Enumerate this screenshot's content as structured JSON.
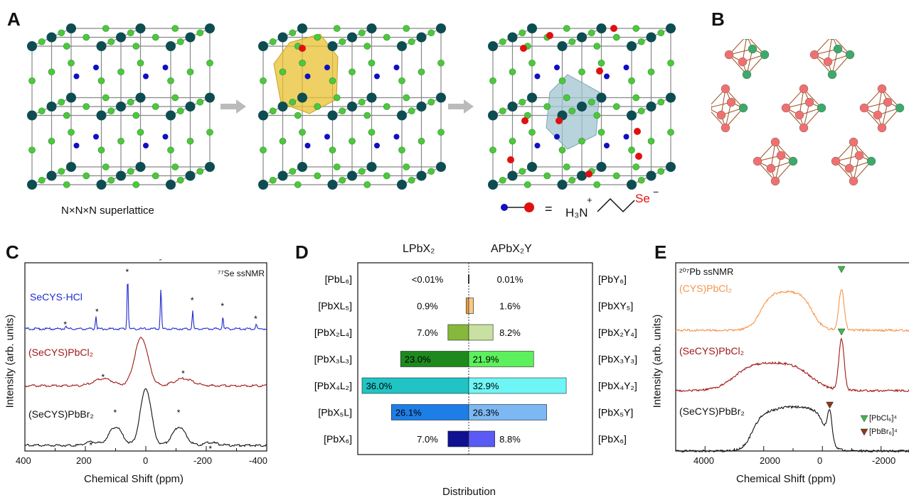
{
  "panels": {
    "a": "A",
    "b": "B",
    "c": "C",
    "d": "D",
    "e": "E"
  },
  "panel_a": {
    "caption": "N×N×N superlattice",
    "legend_equals": "=",
    "ligand": {
      "h3n": "H₃N",
      "plus": "+",
      "se": "Se",
      "minus": "−"
    }
  },
  "panel_c": {
    "title": "⁷⁷Se ssNMR",
    "ylabel": "Intensity (arb. units)",
    "xlabel": "Chemical Shift (ppm)",
    "ticks": [
      "400",
      "200",
      "0",
      "-200",
      "-400"
    ],
    "traces": [
      {
        "name": "SeCYS·HCl",
        "color": "#1f2bd0"
      },
      {
        "name": "(SeCYS)PbCl₂",
        "color": "#a01818"
      },
      {
        "name": "(SeCYS)PbBr₂",
        "color": "#111111"
      }
    ],
    "star": "*"
  },
  "panel_d": {
    "left_header": "LPbX₂",
    "right_header": "APbX₂Y",
    "xlabel": "Distribution",
    "rows": [
      {
        "left_label": "[PbL₆]",
        "right_label": "[PbY₆]",
        "left_pct": "<0.01%",
        "right_pct": "0.01%",
        "left_val": 0.01,
        "right_val": 0.01,
        "left_color": "#555555",
        "right_color": "#555555"
      },
      {
        "left_label": "[PbXL₅]",
        "right_label": "[PbXY₅]",
        "left_pct": "0.9%",
        "right_pct": "1.6%",
        "left_val": 0.9,
        "right_val": 1.6,
        "left_color": "#f0a040",
        "right_color": "#f6c98a"
      },
      {
        "left_label": "[PbX₂L₄]",
        "right_label": "[PbX₂Y₄]",
        "left_pct": "7.0%",
        "right_pct": "8.2%",
        "left_val": 7.0,
        "right_val": 8.2,
        "left_color": "#86b83c",
        "right_color": "#c8e0a0"
      },
      {
        "left_label": "[PbX₃L₃]",
        "right_label": "[PbX₃Y₃]",
        "left_pct": "23.0%",
        "right_pct": "21.9%",
        "left_val": 23.0,
        "right_val": 21.9,
        "left_color": "#1e8a1e",
        "right_color": "#5cf05c"
      },
      {
        "left_label": "[PbX₄L₂]",
        "right_label": "[PbX₄Y₂]",
        "left_pct": "36.0%",
        "right_pct": "32.9%",
        "left_val": 36.0,
        "right_val": 32.9,
        "left_color": "#20c4c4",
        "right_color": "#6ef6f6"
      },
      {
        "left_label": "[PbX₅L]",
        "right_label": "[PbX₅Y]",
        "left_pct": "26.1%",
        "right_pct": "26.3%",
        "left_val": 26.1,
        "right_val": 26.3,
        "left_color": "#1e7ee8",
        "right_color": "#7cb8f4"
      },
      {
        "left_label": "[PbX₆]",
        "right_label": "[PbX₆]",
        "left_pct": "7.0%",
        "right_pct": "8.8%",
        "left_val": 7.0,
        "right_val": 8.8,
        "left_color": "#101090",
        "right_color": "#5a5af4"
      }
    ]
  },
  "panel_e": {
    "title": "²⁰⁷Pb ssNMR",
    "ylabel": "Intensity (arb. units)",
    "xlabel": "Chemical Shift (ppm)",
    "ticks": [
      "4000",
      "2000",
      "0",
      "-2000"
    ],
    "traces": [
      {
        "name": "(CYS)PbCl₂",
        "color": "#f5944a"
      },
      {
        "name": "(SeCYS)PbCl₂",
        "color": "#a01818"
      },
      {
        "name": "(SeCYS)PbBr₂",
        "color": "#111111"
      }
    ],
    "legend": [
      {
        "label": "[PbCl₆]⁴",
        "color": "#3cb84a"
      },
      {
        "label": "[PbBr₆]⁴",
        "color": "#8a3a1a"
      }
    ]
  },
  "colors": {
    "lattice_corner": "#0d4d52",
    "lattice_edge": "#4cc83c",
    "lattice_center": "#1010c0",
    "selenium": "#e01010",
    "polyhedron_gold": "#e8c030",
    "polyhedron_blue": "#a0c4d0",
    "octa_green": "#3caa6a",
    "octa_pink": "#f07070",
    "octa_edge": "#a05020"
  }
}
